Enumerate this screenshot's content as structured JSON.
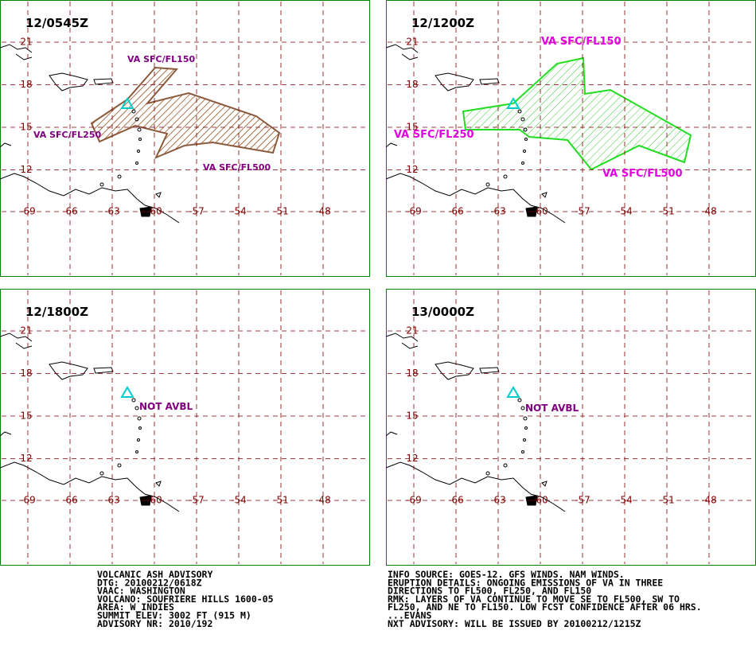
{
  "panels": [
    {
      "title": "12/0545Z",
      "annotations": [
        "VA SFC/FL150",
        "VA SFC/FL250",
        "VA SFC/FL500"
      ]
    },
    {
      "title": "12/1200Z",
      "annotations": [
        "VA SFC/FL150",
        "VA SFC/FL250",
        "VA SFC/FL500"
      ]
    },
    {
      "title": "12/1800Z",
      "annotations": [
        "NOT AVBL"
      ]
    },
    {
      "title": "13/0000Z",
      "annotations": [
        "NOT AVBL"
      ]
    }
  ],
  "grid": {
    "lat": [
      "21",
      "18",
      "15",
      "12"
    ],
    "lon": [
      "-69",
      "-66",
      "-63",
      "-60",
      "-57",
      "-54",
      "-51",
      "-48"
    ]
  },
  "advisory_left": [
    "VOLCANIC ASH ADVISORY",
    "DTG: 20100212/0618Z",
    "VAAC: WASHINGTON",
    "VOLCANO: SOUFRIERE HILLS 1600-05",
    "AREA: W_INDIES",
    "SUMMIT ELEV: 3002 FT (915 M)",
    "ADVISORY NR: 2010/192"
  ],
  "advisory_right": [
    "INFO SOURCE: GOES-12. GFS WINDS. NAM WINDS.",
    "ERUPTION DETAILS: ONGOING EMISSIONS OF VA IN THREE",
    "DIRECTIONS TO FL500, FL250, AND FL150",
    "RMK: LAYERS OF VA CONTINUE TO MOVE SE TO FL500, SW TO",
    "FL250, AND NE TO FL150. LOW FCST CONFIDENCE AFTER 06 HRS.",
    "...EVANS",
    "NXT ADVISORY: WILL BE ISSUED BY 20100212/1215Z"
  ]
}
